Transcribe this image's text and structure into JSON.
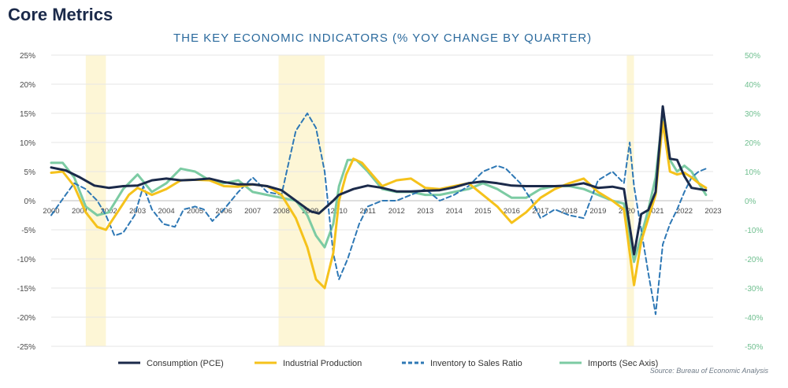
{
  "header": {
    "title": "Core Metrics",
    "subtitle": "THE KEY ECONOMIC INDICATORS (% YOY CHANGE BY QUARTER)"
  },
  "source": "Source: Bureau of Economic Analysis",
  "colors": {
    "pce": "#1b2a4a",
    "ip": "#f5c21b",
    "inv": "#2e78b5",
    "imports": "#7ccba3",
    "recession": "#fdf6d6",
    "left_axis": "#4a4a4a",
    "right_axis": "#6fbf8f"
  },
  "chart_data": {
    "type": "line",
    "x_label_years": [
      "2000",
      "2001",
      "2002",
      "2003",
      "2004",
      "2005",
      "2006",
      "2007",
      "2008",
      "2009",
      "2010",
      "2011",
      "2012",
      "2013",
      "2014",
      "2015",
      "2016",
      "2017",
      "2018",
      "2019",
      "2020",
      "2021",
      "2022",
      "2023"
    ],
    "xlim": [
      2000.0,
      2023.0
    ],
    "y_left": {
      "ylim": [
        -25,
        25
      ],
      "ticks": [
        "25%",
        "20%",
        "15%",
        "10%",
        "5%",
        "0%",
        "-5%",
        "-10%",
        "-15%",
        "-20%",
        "-25%"
      ]
    },
    "y_right": {
      "ylim": [
        -50,
        50
      ],
      "ticks": [
        "50%",
        "40%",
        "30%",
        "20%",
        "10%",
        "0%",
        "-10%",
        "-20%",
        "-30%",
        "-40%",
        "-50%"
      ]
    },
    "recessions": [
      [
        2001.2,
        2001.9
      ],
      [
        2007.9,
        2009.5
      ],
      [
        2020.0,
        2020.25
      ]
    ],
    "legend_position": "bottom",
    "series": [
      {
        "name": "Consumption (PCE)",
        "axis": "left",
        "style": "solid",
        "points": [
          [
            2000.0,
            5.7
          ],
          [
            2000.5,
            5.2
          ],
          [
            2001.0,
            4.0
          ],
          [
            2001.5,
            2.6
          ],
          [
            2002.0,
            2.2
          ],
          [
            2002.5,
            2.5
          ],
          [
            2003.0,
            2.6
          ],
          [
            2003.5,
            3.5
          ],
          [
            2004.0,
            3.8
          ],
          [
            2004.5,
            3.5
          ],
          [
            2005.0,
            3.6
          ],
          [
            2005.5,
            3.8
          ],
          [
            2006.0,
            3.2
          ],
          [
            2006.5,
            2.8
          ],
          [
            2007.0,
            2.8
          ],
          [
            2007.5,
            2.5
          ],
          [
            2008.0,
            1.8
          ],
          [
            2008.5,
            0.0
          ],
          [
            2009.0,
            -1.8
          ],
          [
            2009.3,
            -2.2
          ],
          [
            2009.8,
            0.0
          ],
          [
            2010.0,
            1.0
          ],
          [
            2010.5,
            2.0
          ],
          [
            2011.0,
            2.6
          ],
          [
            2011.5,
            2.2
          ],
          [
            2012.0,
            1.6
          ],
          [
            2012.5,
            1.6
          ],
          [
            2013.0,
            1.7
          ],
          [
            2013.5,
            1.8
          ],
          [
            2014.0,
            2.3
          ],
          [
            2014.5,
            3.0
          ],
          [
            2015.0,
            3.3
          ],
          [
            2015.5,
            3.0
          ],
          [
            2016.0,
            2.6
          ],
          [
            2016.5,
            2.5
          ],
          [
            2017.0,
            2.5
          ],
          [
            2017.5,
            2.5
          ],
          [
            2018.0,
            2.6
          ],
          [
            2018.5,
            3.0
          ],
          [
            2019.0,
            2.2
          ],
          [
            2019.5,
            2.4
          ],
          [
            2019.9,
            2.0
          ],
          [
            2020.25,
            -9.2
          ],
          [
            2020.5,
            -2.3
          ],
          [
            2020.75,
            -1.6
          ],
          [
            2021.0,
            1.5
          ],
          [
            2021.25,
            16.2
          ],
          [
            2021.5,
            7.2
          ],
          [
            2021.75,
            7.0
          ],
          [
            2022.0,
            4.2
          ],
          [
            2022.25,
            2.2
          ],
          [
            2022.5,
            2.0
          ],
          [
            2022.75,
            1.8
          ]
        ]
      },
      {
        "name": "Industrial Production",
        "axis": "left",
        "style": "solid",
        "points": [
          [
            2000.0,
            4.8
          ],
          [
            2000.4,
            5.0
          ],
          [
            2000.8,
            2.5
          ],
          [
            2001.2,
            -2.0
          ],
          [
            2001.6,
            -4.5
          ],
          [
            2001.9,
            -5.0
          ],
          [
            2002.3,
            -2.0
          ],
          [
            2002.7,
            1.0
          ],
          [
            2003.0,
            2.2
          ],
          [
            2003.5,
            1.0
          ],
          [
            2004.0,
            2.0
          ],
          [
            2004.5,
            3.5
          ],
          [
            2005.0,
            3.6
          ],
          [
            2005.5,
            3.5
          ],
          [
            2006.0,
            2.5
          ],
          [
            2006.5,
            2.4
          ],
          [
            2007.0,
            2.8
          ],
          [
            2007.5,
            2.5
          ],
          [
            2008.0,
            1.0
          ],
          [
            2008.5,
            -3.0
          ],
          [
            2008.9,
            -8.0
          ],
          [
            2009.2,
            -13.5
          ],
          [
            2009.5,
            -15.0
          ],
          [
            2009.8,
            -9.0
          ],
          [
            2010.0,
            0.0
          ],
          [
            2010.25,
            4.5
          ],
          [
            2010.5,
            7.2
          ],
          [
            2010.8,
            6.5
          ],
          [
            2011.2,
            4.2
          ],
          [
            2011.5,
            2.5
          ],
          [
            2012.0,
            3.5
          ],
          [
            2012.5,
            3.8
          ],
          [
            2013.0,
            2.2
          ],
          [
            2013.5,
            2.0
          ],
          [
            2014.0,
            2.5
          ],
          [
            2014.5,
            3.0
          ],
          [
            2015.0,
            1.0
          ],
          [
            2015.5,
            -1.0
          ],
          [
            2016.0,
            -3.8
          ],
          [
            2016.5,
            -2.0
          ],
          [
            2017.0,
            0.5
          ],
          [
            2017.5,
            2.0
          ],
          [
            2018.0,
            3.0
          ],
          [
            2018.5,
            3.8
          ],
          [
            2019.0,
            1.5
          ],
          [
            2019.5,
            0.0
          ],
          [
            2019.9,
            -1.5
          ],
          [
            2020.25,
            -14.5
          ],
          [
            2020.5,
            -7.0
          ],
          [
            2020.75,
            -3.0
          ],
          [
            2021.0,
            1.0
          ],
          [
            2021.25,
            13.5
          ],
          [
            2021.5,
            5.0
          ],
          [
            2021.75,
            4.5
          ],
          [
            2022.0,
            4.8
          ],
          [
            2022.25,
            4.0
          ],
          [
            2022.5,
            3.0
          ],
          [
            2022.75,
            2.2
          ]
        ]
      },
      {
        "name": "Inventory to Sales Ratio",
        "axis": "right",
        "style": "dashed",
        "points": [
          [
            2000.0,
            -5.0
          ],
          [
            2000.5,
            2.0
          ],
          [
            2000.8,
            6.0
          ],
          [
            2001.2,
            4.0
          ],
          [
            2001.6,
            0.0
          ],
          [
            2001.9,
            -5.0
          ],
          [
            2002.2,
            -12.0
          ],
          [
            2002.5,
            -11.0
          ],
          [
            2002.9,
            -5.0
          ],
          [
            2003.2,
            5.0
          ],
          [
            2003.5,
            -3.0
          ],
          [
            2003.9,
            -8.0
          ],
          [
            2004.3,
            -9.0
          ],
          [
            2004.6,
            -3.0
          ],
          [
            2005.0,
            -2.0
          ],
          [
            2005.3,
            -3.0
          ],
          [
            2005.6,
            -7.0
          ],
          [
            2006.0,
            -3.0
          ],
          [
            2006.5,
            3.0
          ],
          [
            2007.0,
            8.0
          ],
          [
            2007.5,
            3.0
          ],
          [
            2008.0,
            2.0
          ],
          [
            2008.5,
            24.0
          ],
          [
            2008.9,
            30.0
          ],
          [
            2009.2,
            25.0
          ],
          [
            2009.5,
            10.0
          ],
          [
            2009.8,
            -18.0
          ],
          [
            2010.0,
            -27.0
          ],
          [
            2010.3,
            -20.0
          ],
          [
            2010.7,
            -8.0
          ],
          [
            2011.0,
            -2.0
          ],
          [
            2011.5,
            0.0
          ],
          [
            2012.0,
            0.0
          ],
          [
            2012.5,
            2.0
          ],
          [
            2013.0,
            4.0
          ],
          [
            2013.5,
            0.0
          ],
          [
            2014.0,
            2.0
          ],
          [
            2014.5,
            5.0
          ],
          [
            2015.0,
            10.0
          ],
          [
            2015.5,
            12.0
          ],
          [
            2015.8,
            11.0
          ],
          [
            2016.3,
            6.0
          ],
          [
            2016.7,
            0.0
          ],
          [
            2017.0,
            -6.0
          ],
          [
            2017.5,
            -3.0
          ],
          [
            2018.0,
            -5.0
          ],
          [
            2018.5,
            -6.0
          ],
          [
            2019.0,
            7.0
          ],
          [
            2019.5,
            10.0
          ],
          [
            2019.9,
            6.0
          ],
          [
            2020.1,
            20.0
          ],
          [
            2020.25,
            5.0
          ],
          [
            2020.5,
            -10.0
          ],
          [
            2020.75,
            -25.0
          ],
          [
            2021.0,
            -39.0
          ],
          [
            2021.25,
            -15.0
          ],
          [
            2021.5,
            -8.0
          ],
          [
            2021.75,
            -3.0
          ],
          [
            2022.0,
            3.0
          ],
          [
            2022.25,
            8.0
          ],
          [
            2022.5,
            10.0
          ],
          [
            2022.75,
            11.0
          ]
        ]
      },
      {
        "name": "Imports (Sec Axis)",
        "axis": "right",
        "style": "solid",
        "points": [
          [
            2000.0,
            13.0
          ],
          [
            2000.4,
            13.0
          ],
          [
            2000.8,
            8.0
          ],
          [
            2001.2,
            -2.0
          ],
          [
            2001.6,
            -5.0
          ],
          [
            2002.0,
            -4.0
          ],
          [
            2002.5,
            4.0
          ],
          [
            2003.0,
            9.0
          ],
          [
            2003.5,
            3.0
          ],
          [
            2004.0,
            6.0
          ],
          [
            2004.5,
            11.0
          ],
          [
            2005.0,
            10.0
          ],
          [
            2005.5,
            7.0
          ],
          [
            2006.0,
            6.0
          ],
          [
            2006.5,
            7.0
          ],
          [
            2007.0,
            3.0
          ],
          [
            2007.5,
            2.0
          ],
          [
            2008.0,
            1.0
          ],
          [
            2008.5,
            0.0
          ],
          [
            2008.9,
            -5.0
          ],
          [
            2009.2,
            -12.0
          ],
          [
            2009.5,
            -16.0
          ],
          [
            2009.8,
            -8.0
          ],
          [
            2010.0,
            5.0
          ],
          [
            2010.3,
            14.0
          ],
          [
            2010.6,
            14.0
          ],
          [
            2011.0,
            10.0
          ],
          [
            2011.5,
            4.0
          ],
          [
            2012.0,
            3.0
          ],
          [
            2012.5,
            3.0
          ],
          [
            2013.0,
            2.0
          ],
          [
            2013.5,
            2.0
          ],
          [
            2014.0,
            3.0
          ],
          [
            2014.5,
            4.0
          ],
          [
            2015.0,
            6.0
          ],
          [
            2015.5,
            4.0
          ],
          [
            2016.0,
            1.0
          ],
          [
            2016.5,
            1.0
          ],
          [
            2017.0,
            4.0
          ],
          [
            2017.5,
            5.0
          ],
          [
            2018.0,
            5.0
          ],
          [
            2018.5,
            4.0
          ],
          [
            2019.0,
            2.0
          ],
          [
            2019.5,
            0.0
          ],
          [
            2019.9,
            -1.0
          ],
          [
            2020.25,
            -21.0
          ],
          [
            2020.5,
            -12.0
          ],
          [
            2020.75,
            -3.0
          ],
          [
            2021.0,
            8.0
          ],
          [
            2021.25,
            30.0
          ],
          [
            2021.5,
            14.0
          ],
          [
            2021.75,
            10.0
          ],
          [
            2022.0,
            12.0
          ],
          [
            2022.25,
            10.0
          ],
          [
            2022.5,
            6.0
          ],
          [
            2022.75,
            2.0
          ]
        ]
      }
    ]
  }
}
